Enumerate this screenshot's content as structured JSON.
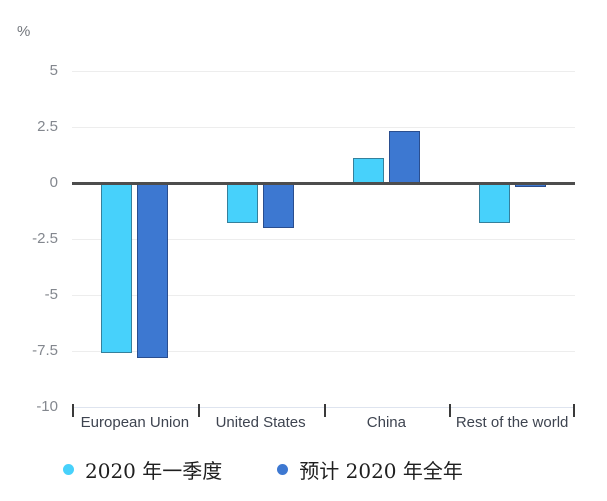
{
  "chart_data": {
    "type": "bar",
    "title": "",
    "categories": [
      "European Union",
      "United States",
      "China",
      "Rest of the world"
    ],
    "series": [
      {
        "name": "2020 年一季度",
        "color": "#47D1FB",
        "border_color": "#35809C",
        "values": [
          -7.6,
          -1.8,
          1.1,
          -1.8
        ]
      },
      {
        "name": "预计 2020 年全年",
        "color": "#3D78D1",
        "border_color": "#2A4E8F",
        "values": [
          -7.8,
          -2.0,
          2.3,
          -0.2
        ]
      }
    ],
    "xlabel": "",
    "ylabel": "%",
    "ylim": [
      -10,
      5
    ],
    "yticks": [
      5,
      2.5,
      0,
      -2.5,
      -5,
      -7.5,
      -10
    ],
    "grid": true,
    "legend_position": "bottom",
    "colors": {
      "background": "#FFFFFF",
      "zero_line": "#4D4D4D",
      "gridline": "#EDEDED",
      "baseline": "#DEE4EF",
      "tick_mark": "#3A3A3A",
      "y_tick_label": "#83878E",
      "x_tick_label": "#3E4450",
      "legend_text": "#1F1F1F"
    }
  },
  "legend": {
    "items": [
      {
        "label": "2020 年一季度",
        "color": "#47D1FB"
      },
      {
        "label": "预计 2020 年全年",
        "color": "#3D78D1"
      }
    ]
  }
}
